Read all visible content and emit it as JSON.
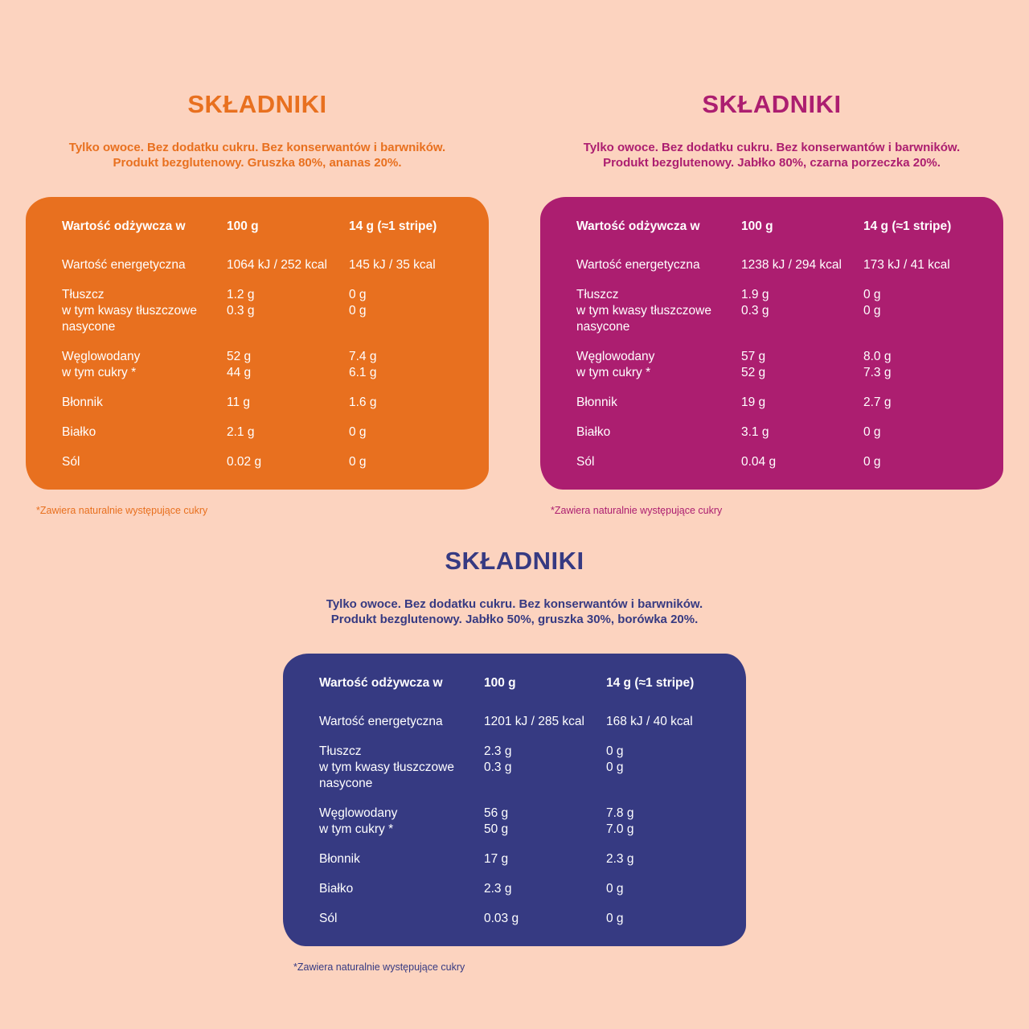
{
  "page": {
    "background": "#FCD3BF"
  },
  "shared": {
    "footnote": "*Zawiera naturalnie występujące cukry",
    "header": {
      "label": "Wartość odżywcza w",
      "col_100": "100 g",
      "col_14": "14 g (≈1 stripe)"
    }
  },
  "panels": [
    {
      "key": "gruszka-ananas",
      "accent": "#E8701F",
      "title": "SKŁADNIKI",
      "subtitle": [
        "Tylko owoce. Bez dodatku cukru. Bez konserwantów i barwników.",
        "Produkt bezglutenowy. Gruszka 80%, ananas 20%."
      ],
      "rows": [
        {
          "lines": [
            {
              "label": "Wartość energetyczna",
              "v100": "1064 kJ / 252 kcal",
              "v14": "145 kJ / 35 kcal"
            }
          ]
        },
        {
          "lines": [
            {
              "label": "Tłuszcz",
              "v100": "1.2 g",
              "v14": "0 g"
            },
            {
              "label": "w tym kwasy tłuszczowe",
              "v100": "0.3 g",
              "v14": "0 g"
            },
            {
              "label": "nasycone",
              "v100": "",
              "v14": ""
            }
          ]
        },
        {
          "lines": [
            {
              "label": "Węglowodany",
              "v100": "52 g",
              "v14": "7.4 g"
            },
            {
              "label": "w tym cukry *",
              "v100": "44 g",
              "v14": "6.1 g"
            }
          ]
        },
        {
          "lines": [
            {
              "label": "Błonnik",
              "v100": "11 g",
              "v14": "1.6 g"
            }
          ]
        },
        {
          "lines": [
            {
              "label": "Białko",
              "v100": "2.1 g",
              "v14": "0 g"
            }
          ]
        },
        {
          "lines": [
            {
              "label": "Sól",
              "v100": "0.02 g",
              "v14": "0 g"
            }
          ]
        }
      ]
    },
    {
      "key": "jablko-czarna-porzeczka",
      "accent": "#AC1E70",
      "title": "SKŁADNIKI",
      "subtitle": [
        "Tylko owoce. Bez dodatku cukru. Bez konserwantów i barwników.",
        "Produkt bezglutenowy. Jabłko 80%, czarna porzeczka 20%."
      ],
      "rows": [
        {
          "lines": [
            {
              "label": "Wartość energetyczna",
              "v100": "1238 kJ / 294 kcal",
              "v14": "173 kJ / 41 kcal"
            }
          ]
        },
        {
          "lines": [
            {
              "label": "Tłuszcz",
              "v100": "1.9 g",
              "v14": "0 g"
            },
            {
              "label": "w tym kwasy tłuszczowe",
              "v100": "0.3 g",
              "v14": "0 g"
            },
            {
              "label": "nasycone",
              "v100": "",
              "v14": ""
            }
          ]
        },
        {
          "lines": [
            {
              "label": "Węglowodany",
              "v100": "57 g",
              "v14": "8.0 g"
            },
            {
              "label": "w tym cukry *",
              "v100": "52 g",
              "v14": "7.3 g"
            }
          ]
        },
        {
          "lines": [
            {
              "label": "Błonnik",
              "v100": "19 g",
              "v14": "2.7 g"
            }
          ]
        },
        {
          "lines": [
            {
              "label": "Białko",
              "v100": "3.1 g",
              "v14": "0 g"
            }
          ]
        },
        {
          "lines": [
            {
              "label": "Sól",
              "v100": "0.04 g",
              "v14": "0 g"
            }
          ]
        }
      ]
    },
    {
      "key": "jablko-gruszka-borowka",
      "accent": "#363A82",
      "title": "SKŁADNIKI",
      "subtitle": [
        "Tylko owoce. Bez dodatku cukru. Bez konserwantów i barwników.",
        "Produkt bezglutenowy. Jabłko 50%, gruszka 30%, borówka 20%."
      ],
      "rows": [
        {
          "lines": [
            {
              "label": "Wartość energetyczna",
              "v100": "1201 kJ / 285 kcal",
              "v14": "168 kJ / 40 kcal"
            }
          ]
        },
        {
          "lines": [
            {
              "label": "Tłuszcz",
              "v100": "2.3 g",
              "v14": "0 g"
            },
            {
              "label": "w tym kwasy tłuszczowe",
              "v100": "0.3 g",
              "v14": "0 g"
            },
            {
              "label": "nasycone",
              "v100": "",
              "v14": ""
            }
          ]
        },
        {
          "lines": [
            {
              "label": "Węglowodany",
              "v100": "56 g",
              "v14": "7.8 g"
            },
            {
              "label": "w tym cukry *",
              "v100": "50 g",
              "v14": "7.0 g"
            }
          ]
        },
        {
          "lines": [
            {
              "label": "Błonnik",
              "v100": "17 g",
              "v14": "2.3 g"
            }
          ]
        },
        {
          "lines": [
            {
              "label": "Białko",
              "v100": "2.3 g",
              "v14": "0 g"
            }
          ]
        },
        {
          "lines": [
            {
              "label": "Sól",
              "v100": "0.03 g",
              "v14": "0 g"
            }
          ]
        }
      ]
    }
  ]
}
